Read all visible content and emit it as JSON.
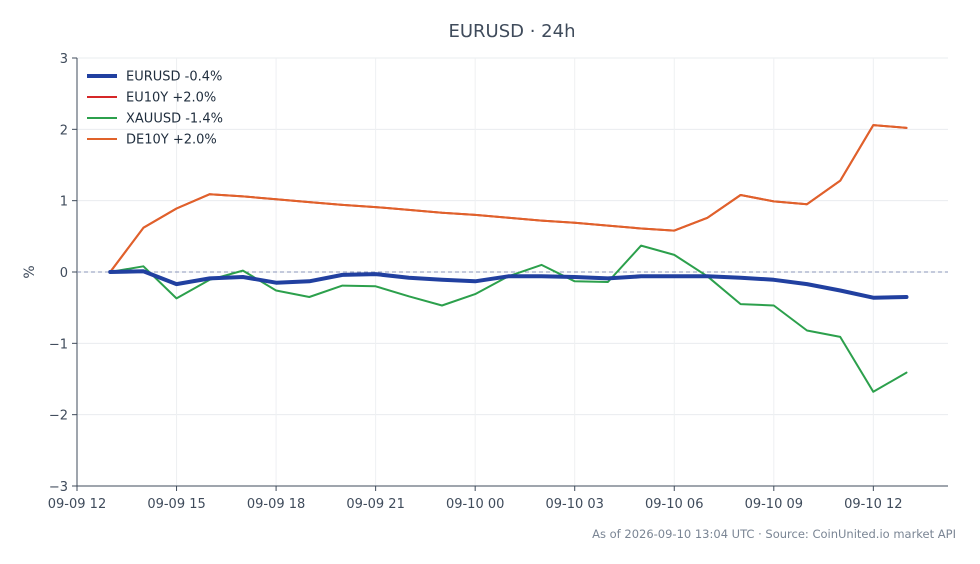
{
  "chart_data": {
    "type": "line",
    "title": "EURUSD · 24h",
    "ylabel": "%",
    "xlabel": "",
    "ylim": [
      -3,
      3
    ],
    "yticks": [
      3,
      2,
      1,
      0,
      -1,
      -2,
      -3
    ],
    "ytick_labels": [
      "3",
      "2",
      "1",
      "0",
      "−1",
      "−2",
      "−3"
    ],
    "xlim": [
      "2026-09-09 12:00",
      "2026-09-10 14:15"
    ],
    "xticks": [
      "2026-09-09 12:00",
      "2026-09-09 15:00",
      "2026-09-09 18:00",
      "2026-09-09 21:00",
      "2026-09-10 00:00",
      "2026-09-10 03:00",
      "2026-09-10 06:00",
      "2026-09-10 09:00",
      "2026-09-10 12:00"
    ],
    "xtick_labels": [
      "09-09 12",
      "09-09 15",
      "09-09 18",
      "09-09 21",
      "09-10 00",
      "09-10 03",
      "09-10 06",
      "09-10 09",
      "09-10 12"
    ],
    "grid": true,
    "zero_line": true,
    "legend_position": "top-left",
    "x": [
      "2026-09-09 13:00",
      "2026-09-09 14:00",
      "2026-09-09 15:00",
      "2026-09-09 16:00",
      "2026-09-09 17:00",
      "2026-09-09 18:00",
      "2026-09-09 19:00",
      "2026-09-09 20:00",
      "2026-09-09 21:00",
      "2026-09-09 22:00",
      "2026-09-09 23:00",
      "2026-09-10 00:00",
      "2026-09-10 01:00",
      "2026-09-10 02:00",
      "2026-09-10 03:00",
      "2026-09-10 04:00",
      "2026-09-10 05:00",
      "2026-09-10 06:00",
      "2026-09-10 07:00",
      "2026-09-10 08:00",
      "2026-09-10 09:00",
      "2026-09-10 10:00",
      "2026-09-10 11:00",
      "2026-09-10 12:00",
      "2026-09-10 13:00"
    ],
    "series": [
      {
        "name": "EURUSD -0.4%",
        "color": "#2140a0",
        "width": 4,
        "values": [
          0.0,
          0.01,
          -0.17,
          -0.09,
          -0.07,
          -0.15,
          -0.13,
          -0.04,
          -0.03,
          -0.08,
          -0.11,
          -0.13,
          -0.06,
          -0.06,
          -0.07,
          -0.09,
          -0.06,
          -0.06,
          -0.06,
          -0.08,
          -0.11,
          -0.17,
          -0.26,
          -0.36,
          -0.35
        ]
      },
      {
        "name": "EU10Y +2.0%",
        "color": "#d62728",
        "width": 2,
        "values": [
          0.0,
          0.62,
          0.89,
          1.09,
          1.06,
          1.02,
          0.98,
          0.94,
          0.91,
          0.87,
          0.83,
          0.8,
          0.76,
          0.72,
          0.69,
          0.65,
          0.61,
          0.58,
          0.76,
          1.08,
          0.99,
          0.95,
          1.28,
          2.06,
          2.02
        ]
      },
      {
        "name": "XAUUSD -1.4%",
        "color": "#2ca04c",
        "width": 2,
        "values": [
          0.0,
          0.08,
          -0.37,
          -0.11,
          0.02,
          -0.26,
          -0.35,
          -0.19,
          -0.2,
          -0.34,
          -0.47,
          -0.31,
          -0.06,
          0.1,
          -0.13,
          -0.14,
          0.37,
          0.24,
          -0.06,
          -0.45,
          -0.47,
          -0.82,
          -0.91,
          -1.68,
          -1.41
        ]
      },
      {
        "name": "DE10Y +2.0%",
        "color": "#e0622a",
        "width": 2,
        "values": [
          0.0,
          0.62,
          0.89,
          1.09,
          1.06,
          1.02,
          0.98,
          0.94,
          0.91,
          0.87,
          0.83,
          0.8,
          0.76,
          0.72,
          0.69,
          0.65,
          0.61,
          0.58,
          0.76,
          1.08,
          0.99,
          0.95,
          1.28,
          2.06,
          2.02
        ]
      }
    ],
    "footnote": "As of 2026-09-10 13:04 UTC · Source: CoinUnited.io market API"
  }
}
